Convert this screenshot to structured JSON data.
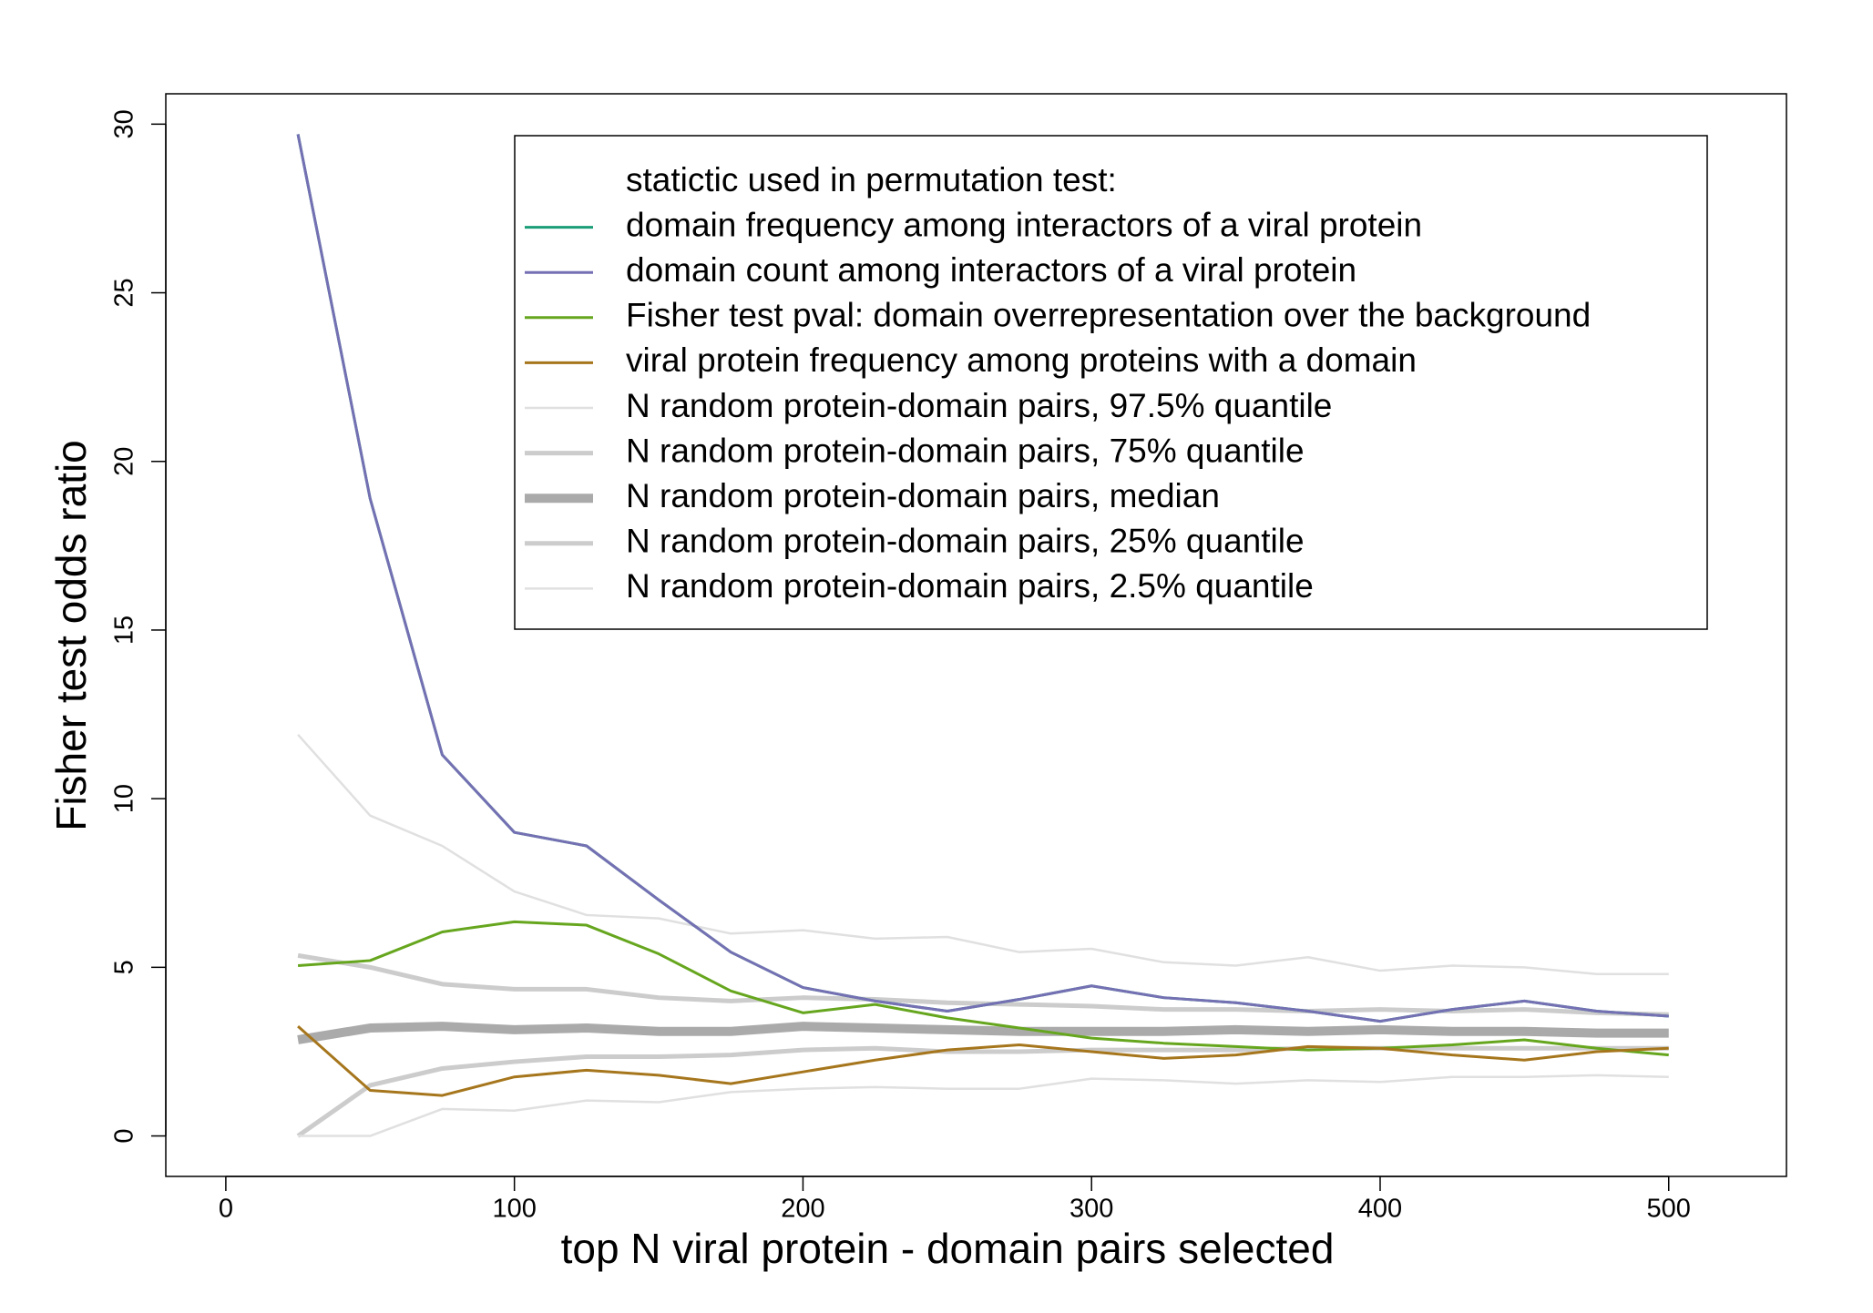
{
  "chart_data": {
    "type": "line",
    "xlabel": "top N viral protein - domain pairs selected",
    "ylabel": "Fisher test odds ratio",
    "legend_title": "statictic used in permutation test:",
    "x": [
      25,
      50,
      75,
      100,
      125,
      150,
      175,
      200,
      225,
      250,
      275,
      300,
      325,
      350,
      375,
      400,
      425,
      450,
      475,
      500
    ],
    "xlim": [
      -20.8,
      540.8
    ],
    "xticks": [
      0,
      100,
      200,
      300,
      400,
      500
    ],
    "ylim": [
      -1.2,
      30.9
    ],
    "yticks": [
      0,
      5,
      10,
      15,
      20,
      25,
      30
    ],
    "legend": "top-right",
    "series": [
      {
        "name": "domain frequency among interactors of a viral protein",
        "color": "#1b9e77",
        "width": 3,
        "values": [
          29.7,
          18.9,
          11.3,
          9.0,
          8.6,
          7.0,
          5.45,
          4.4,
          4.0,
          3.7,
          4.05,
          4.45,
          4.1,
          3.95,
          3.7,
          3.4,
          3.75,
          4.0,
          3.7,
          3.55
        ]
      },
      {
        "name": "domain count among interactors of a viral protein",
        "color": "#7570b3",
        "width": 3,
        "values": [
          29.7,
          18.9,
          11.3,
          9.0,
          8.6,
          7.0,
          5.45,
          4.4,
          4.0,
          3.7,
          4.05,
          4.45,
          4.1,
          3.95,
          3.7,
          3.4,
          3.75,
          4.0,
          3.7,
          3.55
        ]
      },
      {
        "name": "Fisher test pval: domain overrepresentation over the background",
        "color": "#66a61e",
        "width": 3,
        "values": [
          5.05,
          5.2,
          6.05,
          6.35,
          6.25,
          5.4,
          4.3,
          3.65,
          3.9,
          3.5,
          3.2,
          2.9,
          2.75,
          2.65,
          2.55,
          2.6,
          2.7,
          2.85,
          2.6,
          2.4
        ]
      },
      {
        "name": "viral protein frequency among proteins with a domain",
        "color": "#a6761d",
        "width": 3,
        "values": [
          3.25,
          1.35,
          1.2,
          1.75,
          1.95,
          1.8,
          1.55,
          1.9,
          2.25,
          2.55,
          2.7,
          2.5,
          2.3,
          2.4,
          2.65,
          2.6,
          2.4,
          2.25,
          2.5,
          2.6
        ]
      },
      {
        "name": "N random protein-domain pairs, 97.5% quantile",
        "color": "#e0e0e0",
        "width": 2.5,
        "values": [
          11.9,
          9.5,
          8.6,
          7.25,
          6.55,
          6.45,
          6.0,
          6.1,
          5.85,
          5.9,
          5.45,
          5.55,
          5.15,
          5.05,
          5.3,
          4.9,
          5.05,
          5.0,
          4.8,
          4.8
        ]
      },
      {
        "name": "N random protein-domain pairs, 75% quantile",
        "color": "#cccccc",
        "width": 5,
        "values": [
          5.35,
          5.0,
          4.5,
          4.35,
          4.35,
          4.1,
          4.0,
          4.1,
          4.05,
          3.95,
          3.9,
          3.85,
          3.75,
          3.75,
          3.7,
          3.75,
          3.7,
          3.75,
          3.65,
          3.6
        ]
      },
      {
        "name": "N random protein-domain pairs, median",
        "color": "#aaaaaa",
        "width": 10,
        "values": [
          2.85,
          3.2,
          3.25,
          3.15,
          3.2,
          3.1,
          3.1,
          3.25,
          3.2,
          3.15,
          3.1,
          3.1,
          3.1,
          3.15,
          3.1,
          3.15,
          3.1,
          3.1,
          3.05,
          3.05
        ]
      },
      {
        "name": "N random protein-domain pairs, 25% quantile",
        "color": "#cccccc",
        "width": 5,
        "values": [
          0,
          1.5,
          2.0,
          2.2,
          2.35,
          2.35,
          2.4,
          2.55,
          2.6,
          2.5,
          2.5,
          2.55,
          2.55,
          2.55,
          2.6,
          2.6,
          2.6,
          2.6,
          2.6,
          2.6
        ]
      },
      {
        "name": "N random protein-domain pairs, 2.5% quantile",
        "color": "#e0e0e0",
        "width": 2.5,
        "values": [
          0,
          0,
          0.8,
          0.75,
          1.05,
          1.0,
          1.3,
          1.4,
          1.45,
          1.4,
          1.4,
          1.7,
          1.65,
          1.55,
          1.65,
          1.6,
          1.75,
          1.75,
          1.8,
          1.75
        ]
      }
    ]
  }
}
